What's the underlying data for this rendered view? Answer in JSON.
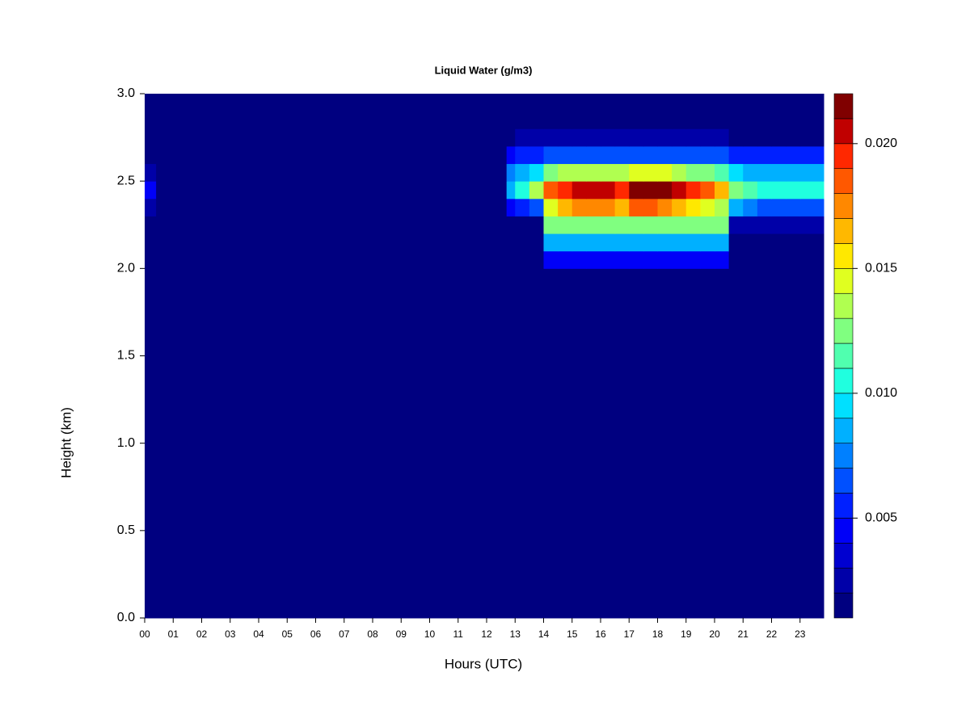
{
  "chart_data": {
    "type": "heatmap",
    "title": "Liquid Water (g/m3)",
    "x_label": "Hours (UTC)",
    "y_label": "Height (km)",
    "xlim": [
      0,
      23.83
    ],
    "ylim": [
      0,
      3.0
    ],
    "xticks": [
      {
        "value": 0,
        "label": "00"
      },
      {
        "value": 1,
        "label": "01"
      },
      {
        "value": 2,
        "label": "02"
      },
      {
        "value": 3,
        "label": "03"
      },
      {
        "value": 4,
        "label": "04"
      },
      {
        "value": 5,
        "label": "05"
      },
      {
        "value": 6,
        "label": "06"
      },
      {
        "value": 7,
        "label": "07"
      },
      {
        "value": 8,
        "label": "08"
      },
      {
        "value": 9,
        "label": "09"
      },
      10,
      11,
      12,
      13,
      14,
      15,
      16,
      17,
      18,
      19,
      20,
      21,
      22,
      23
    ],
    "yticks": [
      {
        "value": 0,
        "label": "0.0"
      },
      0.5,
      {
        "value": 1,
        "label": "1.0"
      },
      1.5,
      {
        "value": 2,
        "label": "2.0"
      },
      2.5,
      {
        "value": 3,
        "label": "3.0"
      }
    ],
    "xbins": [
      0,
      0.4,
      12.7,
      13,
      13.5,
      14,
      14.5,
      15,
      15.5,
      16,
      16.5,
      17,
      17.5,
      18,
      18.5,
      19,
      19.5,
      20,
      20.5,
      21,
      21.5,
      22,
      22.5,
      23,
      23.83
    ],
    "ybins": [
      0,
      2.0,
      2.1,
      2.2,
      2.3,
      2.4,
      2.5,
      2.6,
      2.7,
      2.8,
      3.0
    ],
    "z": [
      [
        0,
        0,
        0,
        0,
        0,
        0,
        0,
        0,
        0,
        0,
        0,
        0,
        0,
        0,
        0,
        0,
        0,
        0,
        0,
        0,
        0,
        0,
        0,
        0
      ],
      [
        0,
        0,
        0,
        0,
        0,
        0.004,
        0.004,
        0.004,
        0.004,
        0.004,
        0.004,
        0.004,
        0.004,
        0.004,
        0.004,
        0.004,
        0.004,
        0.004,
        0,
        0,
        0,
        0,
        0,
        0
      ],
      [
        0,
        0,
        0,
        0,
        0,
        0.008,
        0.008,
        0.008,
        0.008,
        0.008,
        0.008,
        0.008,
        0.008,
        0.008,
        0.008,
        0.008,
        0.008,
        0.008,
        0,
        0,
        0,
        0,
        0,
        0
      ],
      [
        0,
        0,
        0.001,
        0.001,
        0.001,
        0.012,
        0.012,
        0.012,
        0.012,
        0.012,
        0.012,
        0.012,
        0.012,
        0.012,
        0.012,
        0.012,
        0.012,
        0.012,
        0.002,
        0.002,
        0.002,
        0.002,
        0.002,
        0.002
      ],
      [
        0.002,
        0,
        0.004,
        0.005,
        0.006,
        0.014,
        0.016,
        0.017,
        0.017,
        0.017,
        0.016,
        0.018,
        0.018,
        0.017,
        0.016,
        0.015,
        0.014,
        0.013,
        0.008,
        0.007,
        0.006,
        0.006,
        0.006,
        0.006
      ],
      [
        0.004,
        0,
        0.008,
        0.01,
        0.013,
        0.018,
        0.019,
        0.02,
        0.02,
        0.02,
        0.019,
        0.021,
        0.021,
        0.022,
        0.02,
        0.019,
        0.018,
        0.016,
        0.012,
        0.011,
        0.01,
        0.01,
        0.01,
        0.01
      ],
      [
        0.002,
        0,
        0.007,
        0.008,
        0.009,
        0.012,
        0.013,
        0.013,
        0.013,
        0.013,
        0.013,
        0.014,
        0.014,
        0.014,
        0.013,
        0.012,
        0.012,
        0.011,
        0.009,
        0.008,
        0.008,
        0.008,
        0.008,
        0.008
      ],
      [
        0,
        0,
        0.004,
        0.005,
        0.005,
        0.006,
        0.006,
        0.006,
        0.006,
        0.006,
        0.006,
        0.006,
        0.006,
        0.006,
        0.006,
        0.006,
        0.006,
        0.006,
        0.005,
        0.005,
        0.005,
        0.005,
        0.005,
        0.005
      ],
      [
        0,
        0,
        0.001,
        0.002,
        0.002,
        0.002,
        0.002,
        0.002,
        0.002,
        0.002,
        0.002,
        0.002,
        0.002,
        0.002,
        0.002,
        0.002,
        0.002,
        0.002,
        0.001,
        0.001,
        0.001,
        0.001,
        0.001,
        0.001
      ],
      [
        0,
        0,
        0,
        0,
        0,
        0,
        0,
        0,
        0,
        0,
        0,
        0,
        0,
        0,
        0,
        0,
        0,
        0,
        0,
        0,
        0,
        0,
        0,
        0
      ]
    ],
    "levels": [
      0.001,
      0.002,
      0.003,
      0.004,
      0.005,
      0.006,
      0.007,
      0.008,
      0.009,
      0.01,
      0.011,
      0.012,
      0.013,
      0.014,
      0.015,
      0.016,
      0.017,
      0.018,
      0.019,
      0.02,
      0.021,
      0.022
    ],
    "colors": [
      "#000080",
      "#0000a8",
      "#0000d0",
      "#0000f8",
      "#0020ff",
      "#0050ff",
      "#0080ff",
      "#00b0ff",
      "#00e0ff",
      "#20ffdf",
      "#50ffaf",
      "#80ff80",
      "#b0ff50",
      "#e0ff20",
      "#ffe800",
      "#ffb800",
      "#ff8800",
      "#ff5800",
      "#ff2800",
      "#c00000",
      "#800000"
    ],
    "zticks": [
      0.005,
      {
        "value": 0.01,
        "label": "0.010"
      },
      0.015,
      {
        "value": 0.02,
        "label": "0.020"
      }
    ]
  }
}
